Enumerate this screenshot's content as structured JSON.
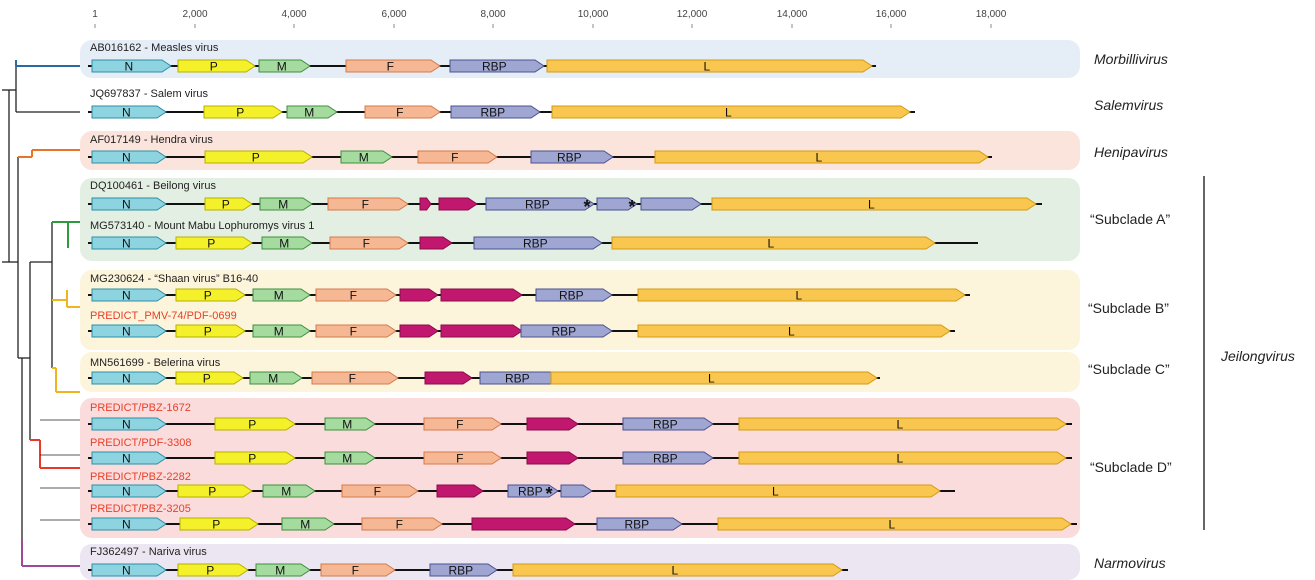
{
  "scale": {
    "ticks": [
      "1",
      "2,000",
      "4,000",
      "6,000",
      "8,000",
      "10,000",
      "12,000",
      "14,000",
      "16,000",
      "18,000"
    ]
  },
  "colors": {
    "N": "#8ed3e0",
    "P": "#f4f12a",
    "M": "#a6dba0",
    "F": "#f6b894",
    "X": "#c2176e",
    "RBP": "#9fa6d2",
    "L": "#f9c74f",
    "morbilli": "#2b6aa0",
    "heni": "#e8742a",
    "jeilong": "#e83a2a",
    "subA": "#2e9a3c",
    "subBC": "#f0b41e",
    "narmo": "#a0489a",
    "red_label": "#e8402a"
  },
  "genera": {
    "morbillivirus": "Morbillivirus",
    "salemvirus": "Salemvirus",
    "henipavirus": "Henipavirus",
    "subclade_a": "“Subclade A”",
    "subclade_b": "“Subclade B”",
    "subclade_c": "“Subclade C”",
    "subclade_d": "“Subclade D”",
    "jeilongvirus": "Jeilongvirus",
    "narmovirus": "Narmovirus"
  },
  "genomes": [
    {
      "label": "AB016162 - Measles virus",
      "red": false,
      "genes": [
        {
          "t": "N",
          "label": "N"
        },
        {
          "t": "P",
          "label": "P"
        },
        {
          "t": "M",
          "label": "M"
        },
        {
          "t": "F",
          "label": "F"
        },
        {
          "t": "RBP",
          "label": "RBP"
        },
        {
          "t": "L",
          "label": "L"
        }
      ]
    },
    {
      "label": "JQ697837 - Salem virus",
      "red": false,
      "genes": [
        {
          "t": "N",
          "label": "N"
        },
        {
          "t": "P",
          "label": "P"
        },
        {
          "t": "M",
          "label": "M"
        },
        {
          "t": "F",
          "label": "F"
        },
        {
          "t": "RBP",
          "label": "RBP"
        },
        {
          "t": "L",
          "label": "L"
        }
      ]
    },
    {
      "label": "AF017149 - Hendra virus",
      "red": false,
      "genes": [
        {
          "t": "N",
          "label": "N"
        },
        {
          "t": "P",
          "label": "P"
        },
        {
          "t": "M",
          "label": "M"
        },
        {
          "t": "F",
          "label": "F"
        },
        {
          "t": "RBP",
          "label": "RBP"
        },
        {
          "t": "L",
          "label": "L"
        }
      ]
    },
    {
      "label": "DQ100461 - Beilong virus",
      "red": false,
      "genes": [
        {
          "t": "N",
          "label": "N"
        },
        {
          "t": "P",
          "label": "P"
        },
        {
          "t": "M",
          "label": "M"
        },
        {
          "t": "F",
          "label": "F"
        },
        {
          "t": "X",
          "label": ""
        },
        {
          "t": "X",
          "label": ""
        },
        {
          "t": "RBP",
          "label": "RBP"
        },
        {
          "t": "RBP",
          "label": ""
        },
        {
          "t": "RBP",
          "label": ""
        },
        {
          "t": "L",
          "label": "L"
        }
      ],
      "stars": [
        "*",
        "*"
      ]
    },
    {
      "label": "MG573140 - Mount Mabu Lophuromys virus 1",
      "red": false,
      "genes": [
        {
          "t": "N",
          "label": "N"
        },
        {
          "t": "P",
          "label": "P"
        },
        {
          "t": "M",
          "label": "M"
        },
        {
          "t": "F",
          "label": "F"
        },
        {
          "t": "X",
          "label": ""
        },
        {
          "t": "RBP",
          "label": "RBP"
        },
        {
          "t": "L",
          "label": "L"
        }
      ]
    },
    {
      "label": "MG230624 - “Shaan virus” B16-40",
      "red": false,
      "genes": [
        {
          "t": "N",
          "label": "N"
        },
        {
          "t": "P",
          "label": "P"
        },
        {
          "t": "M",
          "label": "M"
        },
        {
          "t": "F",
          "label": "F"
        },
        {
          "t": "X",
          "label": ""
        },
        {
          "t": "X",
          "label": ""
        },
        {
          "t": "RBP",
          "label": "RBP"
        },
        {
          "t": "L",
          "label": "L"
        }
      ]
    },
    {
      "label": "PREDICT_PMV-74/PDF-0699",
      "red": true,
      "genes": [
        {
          "t": "N",
          "label": "N"
        },
        {
          "t": "P",
          "label": "P"
        },
        {
          "t": "M",
          "label": "M"
        },
        {
          "t": "F",
          "label": "F"
        },
        {
          "t": "X",
          "label": ""
        },
        {
          "t": "X",
          "label": ""
        },
        {
          "t": "RBP",
          "label": "RBP"
        },
        {
          "t": "L",
          "label": "L"
        }
      ]
    },
    {
      "label": "MN561699 - Belerina virus",
      "red": false,
      "genes": [
        {
          "t": "N",
          "label": "N"
        },
        {
          "t": "P",
          "label": "P"
        },
        {
          "t": "M",
          "label": "M"
        },
        {
          "t": "F",
          "label": "F"
        },
        {
          "t": "X",
          "label": ""
        },
        {
          "t": "RBP",
          "label": "RBP"
        },
        {
          "t": "L",
          "label": "L"
        }
      ]
    },
    {
      "label": "PREDICT/PBZ-1672",
      "red": true,
      "genes": [
        {
          "t": "N",
          "label": "N"
        },
        {
          "t": "P",
          "label": "P"
        },
        {
          "t": "M",
          "label": "M"
        },
        {
          "t": "F",
          "label": "F"
        },
        {
          "t": "X",
          "label": ""
        },
        {
          "t": "RBP",
          "label": "RBP"
        },
        {
          "t": "L",
          "label": "L"
        }
      ]
    },
    {
      "label": "PREDICT/PDF-3308",
      "red": true,
      "genes": [
        {
          "t": "N",
          "label": "N"
        },
        {
          "t": "P",
          "label": "P"
        },
        {
          "t": "M",
          "label": "M"
        },
        {
          "t": "F",
          "label": "F"
        },
        {
          "t": "X",
          "label": ""
        },
        {
          "t": "RBP",
          "label": "RBP"
        },
        {
          "t": "L",
          "label": "L"
        }
      ]
    },
    {
      "label": "PREDICT/PBZ-2282",
      "red": true,
      "genes": [
        {
          "t": "N",
          "label": "N"
        },
        {
          "t": "P",
          "label": "P"
        },
        {
          "t": "M",
          "label": "M"
        },
        {
          "t": "F",
          "label": "F"
        },
        {
          "t": "X",
          "label": ""
        },
        {
          "t": "RBP",
          "label": "RBP"
        },
        {
          "t": "RBP",
          "label": ""
        },
        {
          "t": "L",
          "label": "L"
        }
      ],
      "stars": [
        "*"
      ]
    },
    {
      "label": "PREDICT/PBZ-3205",
      "red": true,
      "genes": [
        {
          "t": "N",
          "label": "N"
        },
        {
          "t": "P",
          "label": "P"
        },
        {
          "t": "M",
          "label": "M"
        },
        {
          "t": "F",
          "label": "F"
        },
        {
          "t": "X",
          "label": ""
        },
        {
          "t": "RBP",
          "label": "RBP"
        },
        {
          "t": "L",
          "label": "L"
        }
      ]
    },
    {
      "label": "FJ362497 - Nariva virus",
      "red": false,
      "genes": [
        {
          "t": "N",
          "label": "N"
        },
        {
          "t": "P",
          "label": "P"
        },
        {
          "t": "M",
          "label": "M"
        },
        {
          "t": "F",
          "label": "F"
        },
        {
          "t": "RBP",
          "label": "RBP"
        },
        {
          "t": "L",
          "label": "L"
        }
      ]
    }
  ]
}
